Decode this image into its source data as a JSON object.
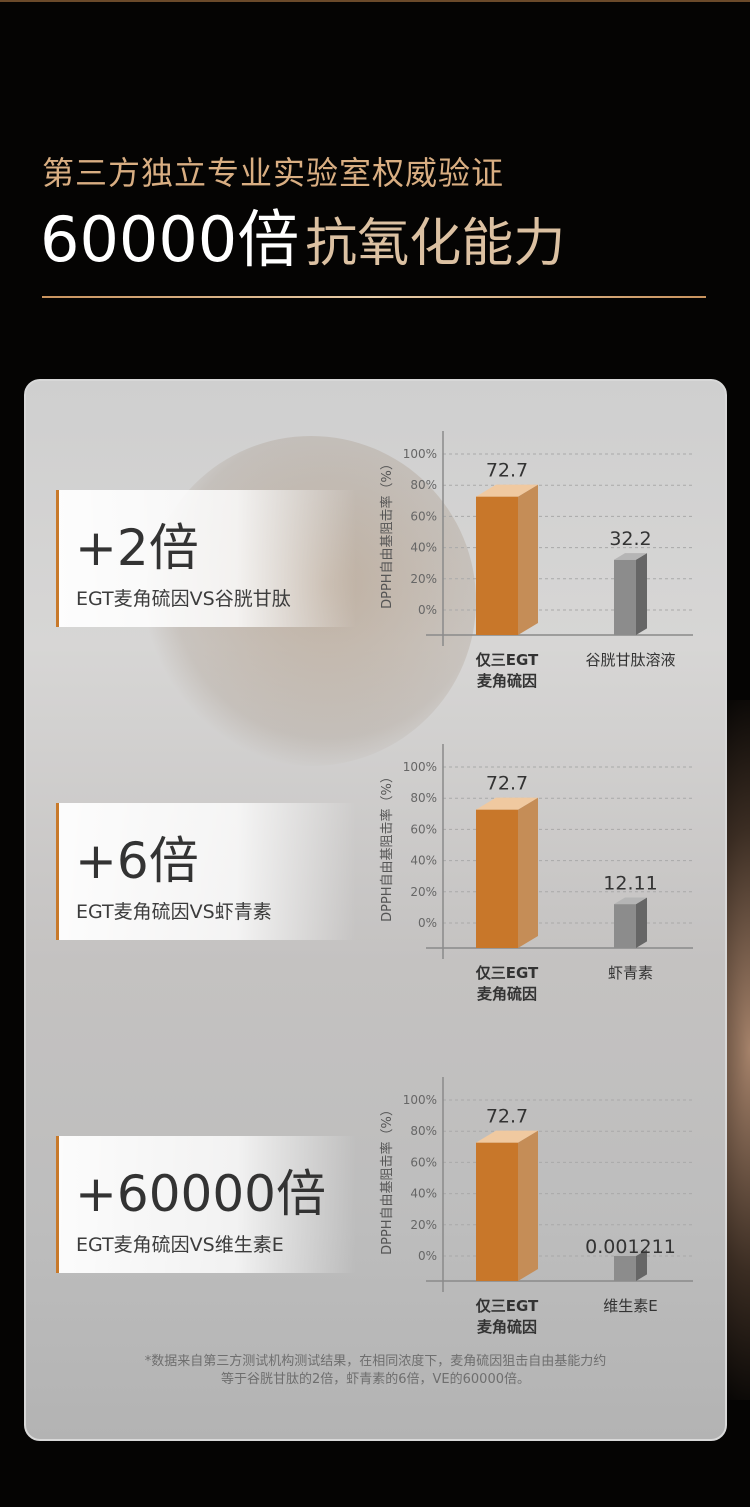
{
  "header": {
    "subtitle": "第三方独立专业实验室权威验证",
    "title_number": "60000倍",
    "title_text": "抗氧化能力"
  },
  "comparisons": [
    {
      "multiplier": "+2倍",
      "caption": "EGT麦角硫因VS谷胱甘肽"
    },
    {
      "multiplier": "+6倍",
      "caption": "EGT麦角硫因VS虾青素"
    },
    {
      "multiplier": "+60000倍",
      "caption": "EGT麦角硫因VS维生素E"
    }
  ],
  "chart_data": [
    {
      "type": "bar",
      "ylabel": "DPPH自由基阻击率（%）",
      "ylim": [
        0,
        100
      ],
      "yticks": [
        "0%",
        "20%",
        "40%",
        "60%",
        "80%",
        "100%"
      ],
      "grid": true,
      "categories": [
        "仅三EGT\n麦角硫因",
        "谷胱甘肽溶液"
      ],
      "values": [
        72.7,
        32.2
      ],
      "value_labels": [
        "72.7",
        "32.2"
      ],
      "colors": [
        "#c8772a",
        "#8c8c8c"
      ]
    },
    {
      "type": "bar",
      "ylabel": "DPPH自由基阻击率（%）",
      "ylim": [
        0,
        100
      ],
      "yticks": [
        "0%",
        "20%",
        "40%",
        "60%",
        "80%",
        "100%"
      ],
      "grid": true,
      "categories": [
        "仅三EGT\n麦角硫因",
        "虾青素"
      ],
      "values": [
        72.7,
        12.11
      ],
      "value_labels": [
        "72.7",
        "12.11"
      ],
      "colors": [
        "#c8772a",
        "#8c8c8c"
      ]
    },
    {
      "type": "bar",
      "ylabel": "DPPH自由基阻击率（%）",
      "ylim": [
        0,
        100
      ],
      "yticks": [
        "0%",
        "20%",
        "40%",
        "60%",
        "80%",
        "100%"
      ],
      "grid": true,
      "categories": [
        "仅三EGT\n麦角硫因",
        "维生素E"
      ],
      "values": [
        72.7,
        0.001211
      ],
      "value_labels": [
        "72.7",
        "0.001211"
      ],
      "colors": [
        "#c8772a",
        "#8c8c8c"
      ]
    }
  ],
  "footnote": {
    "line1": "*数据来自第三方测试机构测试结果，在相同浓度下，麦角硫因狙击自由基能力约",
    "line2": "等于谷胱甘肽的2倍，虾青素的6倍，VE的60000倍。"
  }
}
